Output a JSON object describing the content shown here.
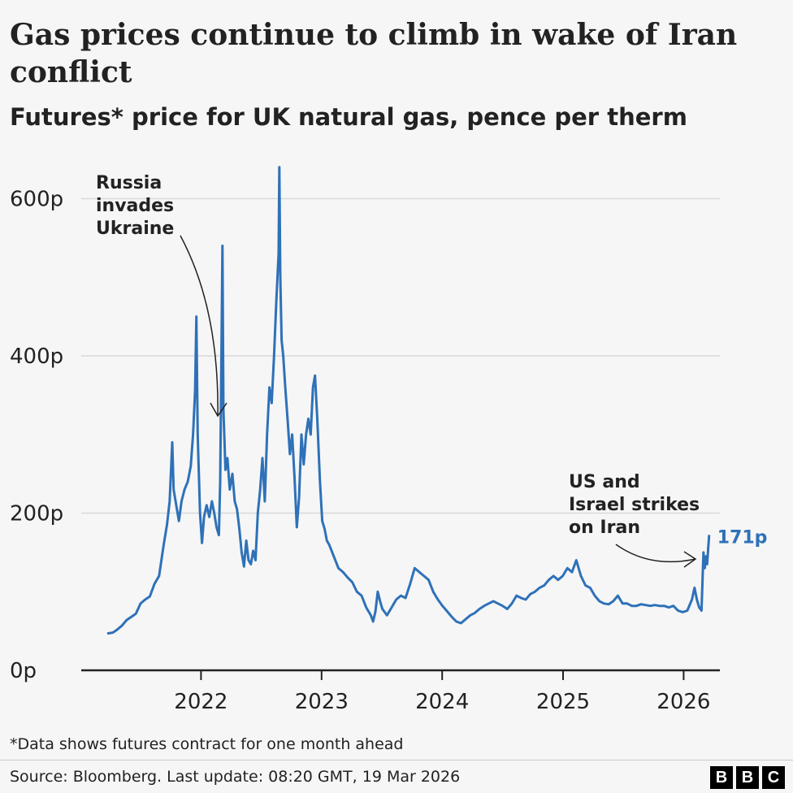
{
  "header": {
    "title": "Gas prices continue to climb in wake of Iran conflict",
    "subtitle": "Futures* price for UK natural gas, pence per therm"
  },
  "footer": {
    "footnote": "*Data shows futures contract for one month ahead",
    "source": "Source: Bloomberg. Last update: 08:20 GMT, 19 Mar 2026",
    "logo_letters": [
      "B",
      "B",
      "C"
    ]
  },
  "colors": {
    "line": "#2e71b8",
    "end_label": "#2e71b8",
    "text": "#222222",
    "grid": "#d9d9d9",
    "axis": "#222222",
    "background": "#f6f6f6"
  },
  "chart_data": {
    "type": "line",
    "title": "Gas prices continue to climb in wake of Iran conflict",
    "subtitle": "Futures* price for UK natural gas, pence per therm",
    "xlabel": "",
    "ylabel": "",
    "x_ticks": [
      "2022",
      "2023",
      "2024",
      "2025",
      "2026"
    ],
    "y_ticks": [
      "0p",
      "200p",
      "400p",
      "600p"
    ],
    "ylim": [
      0,
      650
    ],
    "xlim": [
      "2021-01-01",
      "2026-04-01"
    ],
    "grid": true,
    "series": [
      {
        "color": "#2e71b8",
        "end_label": "171p",
        "points": [
          [
            "2021-03-26",
            47
          ],
          [
            "2021-04-09",
            48
          ],
          [
            "2021-04-23",
            52
          ],
          [
            "2021-05-07",
            57
          ],
          [
            "2021-05-21",
            64
          ],
          [
            "2021-06-04",
            68
          ],
          [
            "2021-06-18",
            72
          ],
          [
            "2021-07-02",
            85
          ],
          [
            "2021-07-16",
            90
          ],
          [
            "2021-07-30",
            94
          ],
          [
            "2021-08-13",
            110
          ],
          [
            "2021-08-27",
            120
          ],
          [
            "2021-09-10",
            160
          ],
          [
            "2021-09-20",
            185
          ],
          [
            "2021-09-28",
            215
          ],
          [
            "2021-10-06",
            290
          ],
          [
            "2021-10-10",
            230
          ],
          [
            "2021-10-18",
            210
          ],
          [
            "2021-10-26",
            190
          ],
          [
            "2021-11-03",
            215
          ],
          [
            "2021-11-12",
            230
          ],
          [
            "2021-11-22",
            240
          ],
          [
            "2021-12-01",
            260
          ],
          [
            "2021-12-08",
            300
          ],
          [
            "2021-12-14",
            355
          ],
          [
            "2021-12-18",
            450
          ],
          [
            "2021-12-22",
            300
          ],
          [
            "2021-12-29",
            200
          ],
          [
            "2022-01-04",
            162
          ],
          [
            "2022-01-10",
            195
          ],
          [
            "2022-01-18",
            210
          ],
          [
            "2022-01-26",
            195
          ],
          [
            "2022-02-03",
            215
          ],
          [
            "2022-02-10",
            200
          ],
          [
            "2022-02-17",
            182
          ],
          [
            "2022-02-24",
            172
          ],
          [
            "2022-02-28",
            240
          ],
          [
            "2022-03-04",
            410
          ],
          [
            "2022-03-07",
            540
          ],
          [
            "2022-03-10",
            330
          ],
          [
            "2022-03-16",
            255
          ],
          [
            "2022-03-22",
            270
          ],
          [
            "2022-03-29",
            230
          ],
          [
            "2022-04-06",
            250
          ],
          [
            "2022-04-13",
            215
          ],
          [
            "2022-04-20",
            205
          ],
          [
            "2022-04-27",
            180
          ],
          [
            "2022-05-04",
            150
          ],
          [
            "2022-05-11",
            132
          ],
          [
            "2022-05-18",
            165
          ],
          [
            "2022-05-25",
            140
          ],
          [
            "2022-06-01",
            135
          ],
          [
            "2022-06-08",
            152
          ],
          [
            "2022-06-15",
            140
          ],
          [
            "2022-06-22",
            200
          ],
          [
            "2022-06-29",
            230
          ],
          [
            "2022-07-06",
            270
          ],
          [
            "2022-07-13",
            215
          ],
          [
            "2022-07-20",
            300
          ],
          [
            "2022-07-27",
            360
          ],
          [
            "2022-08-03",
            340
          ],
          [
            "2022-08-10",
            400
          ],
          [
            "2022-08-17",
            470
          ],
          [
            "2022-08-24",
            530
          ],
          [
            "2022-08-26",
            640
          ],
          [
            "2022-08-29",
            500
          ],
          [
            "2022-09-02",
            420
          ],
          [
            "2022-09-07",
            400
          ],
          [
            "2022-09-13",
            360
          ],
          [
            "2022-09-20",
            320
          ],
          [
            "2022-09-27",
            275
          ],
          [
            "2022-10-04",
            300
          ],
          [
            "2022-10-11",
            245
          ],
          [
            "2022-10-18",
            182
          ],
          [
            "2022-10-25",
            220
          ],
          [
            "2022-11-01",
            300
          ],
          [
            "2022-11-08",
            262
          ],
          [
            "2022-11-15",
            300
          ],
          [
            "2022-11-22",
            320
          ],
          [
            "2022-11-29",
            300
          ],
          [
            "2022-12-06",
            360
          ],
          [
            "2022-12-12",
            375
          ],
          [
            "2022-12-19",
            320
          ],
          [
            "2022-12-27",
            240
          ],
          [
            "2023-01-03",
            190
          ],
          [
            "2023-01-10",
            180
          ],
          [
            "2023-01-17",
            165
          ],
          [
            "2023-01-24",
            160
          ],
          [
            "2023-02-07",
            145
          ],
          [
            "2023-02-21",
            130
          ],
          [
            "2023-03-07",
            125
          ],
          [
            "2023-03-21",
            118
          ],
          [
            "2023-04-04",
            112
          ],
          [
            "2023-04-18",
            100
          ],
          [
            "2023-05-02",
            95
          ],
          [
            "2023-05-16",
            80
          ],
          [
            "2023-05-30",
            70
          ],
          [
            "2023-06-06",
            62
          ],
          [
            "2023-06-13",
            75
          ],
          [
            "2023-06-20",
            100
          ],
          [
            "2023-06-27",
            88
          ],
          [
            "2023-07-04",
            78
          ],
          [
            "2023-07-18",
            70
          ],
          [
            "2023-08-01",
            80
          ],
          [
            "2023-08-15",
            90
          ],
          [
            "2023-08-29",
            95
          ],
          [
            "2023-09-12",
            92
          ],
          [
            "2023-09-26",
            110
          ],
          [
            "2023-10-10",
            130
          ],
          [
            "2023-10-24",
            125
          ],
          [
            "2023-11-07",
            120
          ],
          [
            "2023-11-21",
            115
          ],
          [
            "2023-12-05",
            100
          ],
          [
            "2023-12-19",
            90
          ],
          [
            "2024-01-02",
            82
          ],
          [
            "2024-01-16",
            75
          ],
          [
            "2024-01-30",
            68
          ],
          [
            "2024-02-13",
            62
          ],
          [
            "2024-02-27",
            60
          ],
          [
            "2024-03-12",
            65
          ],
          [
            "2024-03-26",
            70
          ],
          [
            "2024-04-09",
            73
          ],
          [
            "2024-04-23",
            78
          ],
          [
            "2024-05-07",
            82
          ],
          [
            "2024-05-21",
            85
          ],
          [
            "2024-06-04",
            88
          ],
          [
            "2024-06-18",
            85
          ],
          [
            "2024-07-02",
            82
          ],
          [
            "2024-07-16",
            78
          ],
          [
            "2024-07-30",
            85
          ],
          [
            "2024-08-13",
            95
          ],
          [
            "2024-08-27",
            92
          ],
          [
            "2024-09-10",
            90
          ],
          [
            "2024-09-24",
            97
          ],
          [
            "2024-10-08",
            100
          ],
          [
            "2024-10-22",
            105
          ],
          [
            "2024-11-05",
            108
          ],
          [
            "2024-11-19",
            115
          ],
          [
            "2024-12-03",
            120
          ],
          [
            "2024-12-17",
            115
          ],
          [
            "2024-12-31",
            120
          ],
          [
            "2025-01-14",
            130
          ],
          [
            "2025-01-28",
            125
          ],
          [
            "2025-02-10",
            140
          ],
          [
            "2025-02-24",
            120
          ],
          [
            "2025-03-10",
            108
          ],
          [
            "2025-03-24",
            105
          ],
          [
            "2025-04-07",
            95
          ],
          [
            "2025-04-21",
            88
          ],
          [
            "2025-05-05",
            85
          ],
          [
            "2025-05-19",
            84
          ],
          [
            "2025-06-02",
            88
          ],
          [
            "2025-06-16",
            95
          ],
          [
            "2025-06-30",
            85
          ],
          [
            "2025-07-14",
            85
          ],
          [
            "2025-07-28",
            82
          ],
          [
            "2025-08-11",
            82
          ],
          [
            "2025-08-25",
            84
          ],
          [
            "2025-09-08",
            83
          ],
          [
            "2025-09-22",
            82
          ],
          [
            "2025-10-06",
            83
          ],
          [
            "2025-10-20",
            82
          ],
          [
            "2025-11-03",
            82
          ],
          [
            "2025-11-17",
            80
          ],
          [
            "2025-12-01",
            82
          ],
          [
            "2025-12-15",
            76
          ],
          [
            "2025-12-29",
            74
          ],
          [
            "2026-01-12",
            76
          ],
          [
            "2026-01-26",
            90
          ],
          [
            "2026-02-03",
            105
          ],
          [
            "2026-02-10",
            90
          ],
          [
            "2026-02-17",
            80
          ],
          [
            "2026-02-24",
            76
          ],
          [
            "2026-03-02",
            150
          ],
          [
            "2026-03-06",
            130
          ],
          [
            "2026-03-10",
            145
          ],
          [
            "2026-03-13",
            135
          ],
          [
            "2026-03-19",
            171
          ]
        ]
      }
    ],
    "annotations": [
      {
        "lines": [
          "Russia",
          "invades",
          "Ukraine"
        ],
        "date": "2022-02-24"
      },
      {
        "lines": [
          "US and",
          "Israel strikes",
          "on Iran"
        ],
        "date": "2026-03-01"
      }
    ]
  }
}
